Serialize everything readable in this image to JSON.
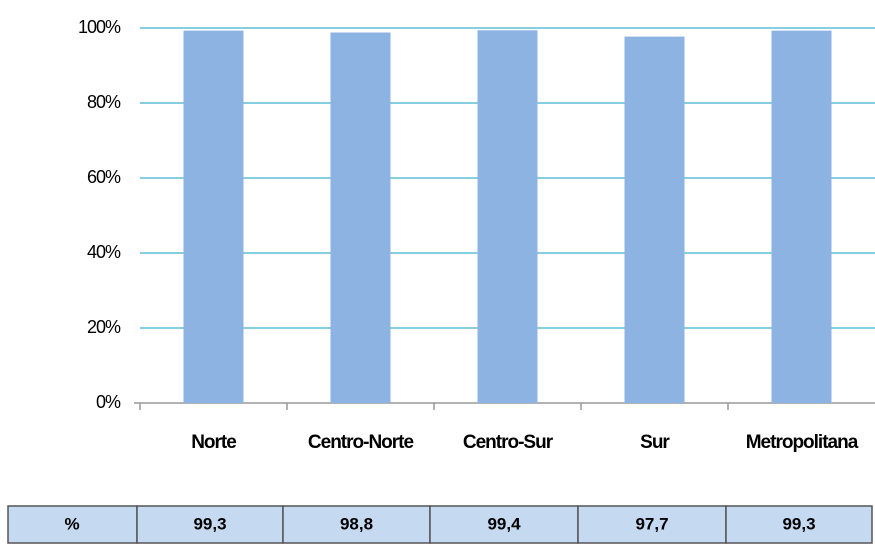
{
  "chart_data": {
    "type": "bar",
    "categories": [
      "Norte",
      "Centro-Norte",
      "Centro-Sur",
      "Sur",
      "Metropolitana"
    ],
    "values": [
      99.3,
      98.8,
      99.4,
      97.7,
      99.3
    ],
    "value_labels": [
      "99,3",
      "98,8",
      "99,4",
      "97,7",
      "99,3"
    ],
    "color": "#8db3e2",
    "ylim": [
      0,
      100
    ],
    "yticks": [
      {
        "value": 0,
        "label": "0%"
      },
      {
        "value": 20,
        "label": "20%"
      },
      {
        "value": 40,
        "label": "40%"
      },
      {
        "value": 60,
        "label": "60%"
      },
      {
        "value": 80,
        "label": "80%"
      },
      {
        "value": 100,
        "label": "100%"
      }
    ],
    "grid": true,
    "table_header": "%"
  }
}
